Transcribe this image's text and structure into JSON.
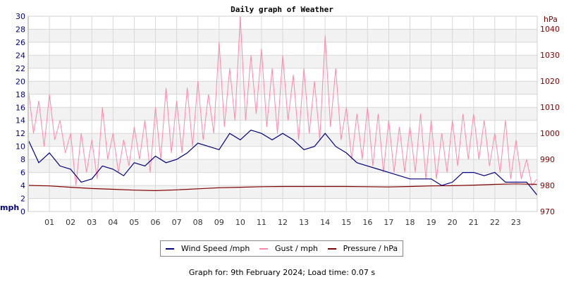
{
  "chart_data": {
    "type": "line",
    "title": "Daily graph of Weather",
    "x_ticks": [
      "01",
      "02",
      "03",
      "04",
      "05",
      "06",
      "07",
      "08",
      "09",
      "10",
      "11",
      "12",
      "13",
      "14",
      "15",
      "16",
      "17",
      "18",
      "19",
      "20",
      "21",
      "22",
      "23"
    ],
    "xlim": [
      0,
      24
    ],
    "left_axis": {
      "label": "mph",
      "ylim": [
        0,
        30
      ],
      "ticks": [
        0,
        2,
        4,
        6,
        8,
        10,
        12,
        14,
        16,
        18,
        20,
        22,
        24,
        26,
        28,
        30
      ],
      "color": "#000080"
    },
    "right_axis": {
      "label": "hPa",
      "ylim": [
        970,
        1044.86
      ],
      "ticks": [
        970,
        980,
        990,
        1000,
        1010,
        1020,
        1030,
        1040
      ],
      "color": "#800000"
    },
    "grid": true,
    "legend_placement": "bottom",
    "series": [
      {
        "name": "Wind Speed /mph",
        "axis": "left",
        "color": "#000080",
        "step_hours": 0.5,
        "values": [
          11,
          7.5,
          9,
          7,
          6.5,
          4.5,
          5,
          7,
          6.5,
          5.5,
          7.5,
          7,
          8.5,
          7.5,
          8,
          9,
          10.5,
          10,
          9.5,
          12,
          11,
          12.5,
          12,
          11,
          12,
          11,
          9.5,
          10,
          12,
          10,
          9,
          7.5,
          7,
          6.5,
          6,
          5.5,
          5,
          5,
          5,
          4,
          4.5,
          6,
          6,
          5.5,
          6,
          4.5,
          4.5,
          4.5,
          2.5
        ]
      },
      {
        "name": "Gust / mph",
        "axis": "left",
        "color": "#ff88aa",
        "step_hours": 0.25,
        "values": [
          19,
          12,
          17,
          10,
          18,
          11,
          14,
          9,
          12,
          4,
          12,
          6,
          11,
          5,
          16,
          8,
          12,
          6,
          11,
          7,
          13,
          8,
          14,
          6,
          16,
          8,
          19,
          9,
          17,
          9,
          19,
          10,
          20,
          11,
          18,
          12,
          26,
          13,
          22,
          14,
          30,
          14,
          24,
          15,
          25,
          13,
          22,
          12,
          24,
          14,
          21,
          11,
          22,
          12,
          20,
          11,
          27,
          13,
          22,
          11,
          16,
          8,
          15,
          8,
          16,
          7,
          15,
          6,
          14,
          6,
          13,
          6,
          13,
          6,
          15,
          5,
          14,
          5,
          12,
          6,
          14,
          7,
          15,
          8,
          15,
          8,
          14,
          7,
          12,
          6,
          14,
          5,
          11,
          5,
          8,
          4,
          5
        ]
      },
      {
        "name": "Pressure / hPa",
        "axis": "right",
        "color": "#800000",
        "step_hours": 1,
        "values": [
          980,
          979.8,
          979.3,
          978.8,
          978.5,
          978.2,
          978,
          978.3,
          978.7,
          979.1,
          979.3,
          979.5,
          979.6,
          979.6,
          979.6,
          979.6,
          979.5,
          979.4,
          979.6,
          979.8,
          979.9,
          980.1,
          980.4,
          980.6,
          980.4
        ]
      }
    ]
  },
  "footer": "Graph for: 9th February 2024; Load time: 0.07 s"
}
